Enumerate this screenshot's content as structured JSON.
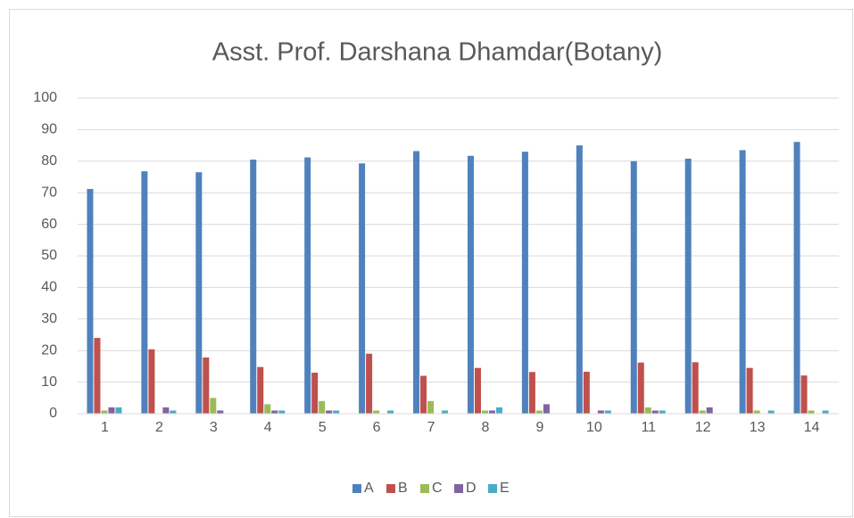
{
  "chart_data": {
    "type": "bar",
    "title": "Asst. Prof. Darshana Dhamdar(Botany)",
    "categories": [
      "1",
      "2",
      "3",
      "4",
      "5",
      "6",
      "7",
      "8",
      "9",
      "10",
      "11",
      "12",
      "13",
      "14"
    ],
    "series": [
      {
        "name": "A",
        "color": "#4f81bd",
        "values": [
          71.2,
          76.8,
          76.5,
          80.5,
          81.2,
          79.3,
          83.2,
          81.7,
          83,
          85,
          80,
          80.8,
          83.5,
          86.1
        ]
      },
      {
        "name": "B",
        "color": "#c0504d",
        "values": [
          24,
          20.4,
          17.8,
          14.8,
          13,
          19,
          12,
          14.5,
          13.2,
          13.3,
          16.2,
          16.3,
          14.5,
          12.1
        ]
      },
      {
        "name": "C",
        "color": "#9bbb59",
        "values": [
          1,
          0,
          5,
          3,
          4,
          1,
          4,
          1,
          1,
          0,
          2,
          1,
          1,
          1
        ]
      },
      {
        "name": "D",
        "color": "#8064a2",
        "values": [
          2,
          2,
          1,
          1,
          1,
          0,
          0,
          1,
          3,
          1,
          1,
          2,
          0,
          0
        ]
      },
      {
        "name": "E",
        "color": "#4bacc6",
        "values": [
          2,
          1,
          0,
          1,
          1,
          1,
          1,
          2,
          0,
          1,
          1,
          0,
          1,
          1
        ]
      }
    ],
    "ylim": [
      0,
      100
    ],
    "yticks": [
      0,
      10,
      20,
      30,
      40,
      50,
      60,
      70,
      80,
      90,
      100
    ],
    "grid": true,
    "legend": "bottom"
  }
}
